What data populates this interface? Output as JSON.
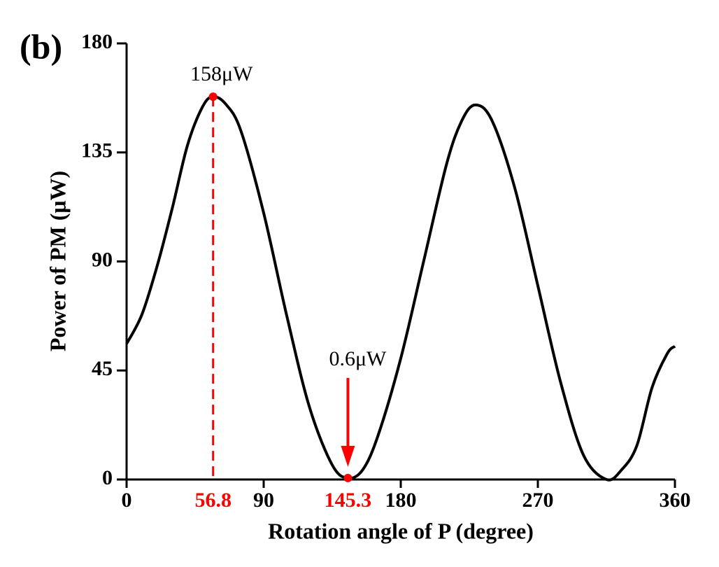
{
  "chart_data": {
    "type": "line",
    "panel_label": "(b)",
    "x_label": "Rotation angle of P (degree)",
    "y_label": "Power of PM (μW)",
    "x": [
      0,
      10,
      20,
      30,
      40,
      50,
      56.8,
      65,
      75,
      90,
      105,
      120,
      135,
      145.3,
      155,
      165,
      180,
      195,
      210,
      220,
      229,
      240,
      255,
      270,
      285,
      300,
      315,
      325,
      335,
      345,
      355,
      360
    ],
    "series": [
      {
        "name": "Power",
        "color": "#000000",
        "values": [
          56,
          68,
          88,
          112,
          138,
          154,
          158,
          155,
          144,
          110,
          68,
          30,
          6,
          0.6,
          4,
          18,
          50,
          90,
          130,
          148,
          154.6,
          148,
          120,
          80,
          40,
          10,
          0,
          4,
          14,
          38,
          52,
          55
        ]
      }
    ],
    "markers": [
      {
        "x": 56.8,
        "y": 158,
        "label": "158μW",
        "color": "#ff0000"
      },
      {
        "x": 145.3,
        "y": 0.6,
        "label": "0.6μW",
        "color": "#ff0000"
      }
    ],
    "xlim": [
      0,
      360
    ],
    "xticks": [
      0,
      90,
      180,
      270,
      360
    ],
    "ylim": [
      0,
      180
    ],
    "yticks": [
      0,
      45,
      90,
      135,
      180
    ]
  }
}
